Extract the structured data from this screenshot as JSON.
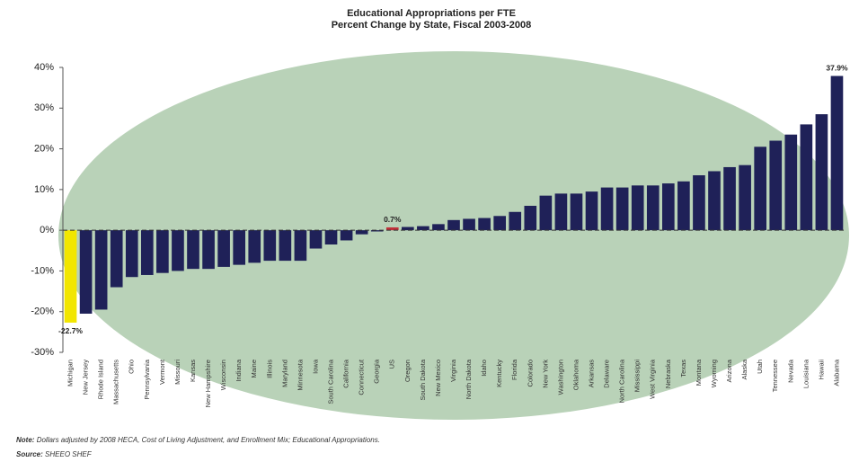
{
  "chart_data": {
    "type": "bar",
    "title": "Educational Appropriations per FTE",
    "subtitle": "Percent Change by State, Fiscal 2003-2008",
    "categories": [
      "Michigan",
      "New Jersey",
      "Rhode Island",
      "Massachusetts",
      "Ohio",
      "Pennsylvania",
      "Vermont",
      "Missouri",
      "Kansas",
      "New Hampshire",
      "Wisconsin",
      "Indiana",
      "Maine",
      "Illinois",
      "Maryland",
      "Minnesota",
      "Iowa",
      "South Carolina",
      "California",
      "Connecticut",
      "Georgia",
      "US",
      "Oregon",
      "South Dakota",
      "New Mexico",
      "Virginia",
      "North Dakota",
      "Idaho",
      "Kentucky",
      "Florida",
      "Colorado",
      "New York",
      "Washington",
      "Oklahoma",
      "Arkansas",
      "Delaware",
      "North Carolina",
      "Mississippi",
      "West Virginia",
      "Nebraska",
      "Texas",
      "Montana",
      "Wyoming",
      "Arizona",
      "Alaska",
      "Utah",
      "Tennessee",
      "Nevada",
      "Louisiana",
      "Hawaii",
      "Alabama"
    ],
    "values": [
      -22.7,
      -20.5,
      -19.5,
      -14,
      -11.5,
      -11,
      -10.5,
      -10,
      -9.5,
      -9.5,
      -9,
      -8.5,
      -8,
      -7.5,
      -7.5,
      -7.5,
      -4.5,
      -3.5,
      -2.5,
      -1,
      -0.3,
      0.7,
      0.8,
      1,
      1.5,
      2.5,
      2.8,
      3,
      3.5,
      4.5,
      6,
      8.5,
      9,
      9,
      9.5,
      10.5,
      10.5,
      11,
      11,
      11.5,
      12,
      13.5,
      14.5,
      15.5,
      16,
      20.5,
      22,
      23.5,
      26,
      28.5,
      37.9
    ],
    "value_labels": [
      "-22.7%",
      null,
      null,
      null,
      null,
      null,
      null,
      null,
      null,
      null,
      null,
      null,
      null,
      null,
      null,
      null,
      null,
      null,
      null,
      null,
      null,
      "0.7%",
      null,
      null,
      null,
      null,
      null,
      null,
      null,
      null,
      null,
      null,
      null,
      null,
      null,
      null,
      null,
      null,
      null,
      null,
      null,
      null,
      null,
      null,
      null,
      null,
      null,
      null,
      null,
      null,
      "37.9%"
    ],
    "color": "#1f2158",
    "highlight_colors": {
      "Michigan": "#f2e600",
      "US": "#c0303a"
    },
    "ylim": [
      -30,
      40
    ],
    "yticks": [
      {
        "value": -30,
        "label": "-30%"
      },
      {
        "value": -20,
        "label": "-20%"
      },
      {
        "value": -10,
        "label": "-10%"
      },
      {
        "value": 0,
        "label": "0%"
      },
      {
        "value": 10,
        "label": "10%"
      },
      {
        "value": 20,
        "label": "20%"
      },
      {
        "value": 30,
        "label": "30%"
      },
      {
        "value": 40,
        "label": "40%"
      }
    ],
    "note_label": "Note:",
    "note": "Dollars adjusted by 2008 HECA, Cost of Living Adjustment, and Enrollment Mix; Educational Appropriations.",
    "source_label": "Source:",
    "source": "SHEEO SHEF"
  }
}
